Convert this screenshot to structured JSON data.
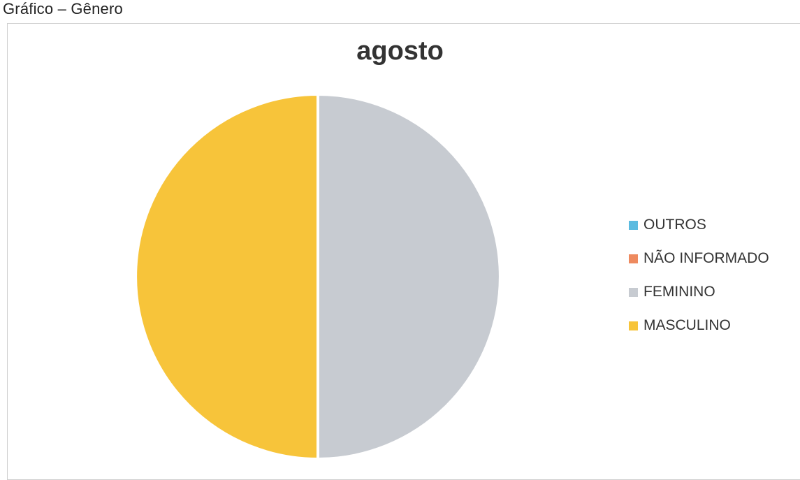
{
  "heading": "Gráfico – Gênero",
  "chart_data": {
    "type": "pie",
    "title": "agosto",
    "categories": [
      "OUTROS",
      "NÃO INFORMADO",
      "FEMININO",
      "MASCULINO"
    ],
    "values": [
      0,
      0,
      50,
      50
    ],
    "colors": [
      "#5bbbe0",
      "#ee8a5f",
      "#c7cbd1",
      "#f7c43a"
    ],
    "legend_position": "right"
  }
}
